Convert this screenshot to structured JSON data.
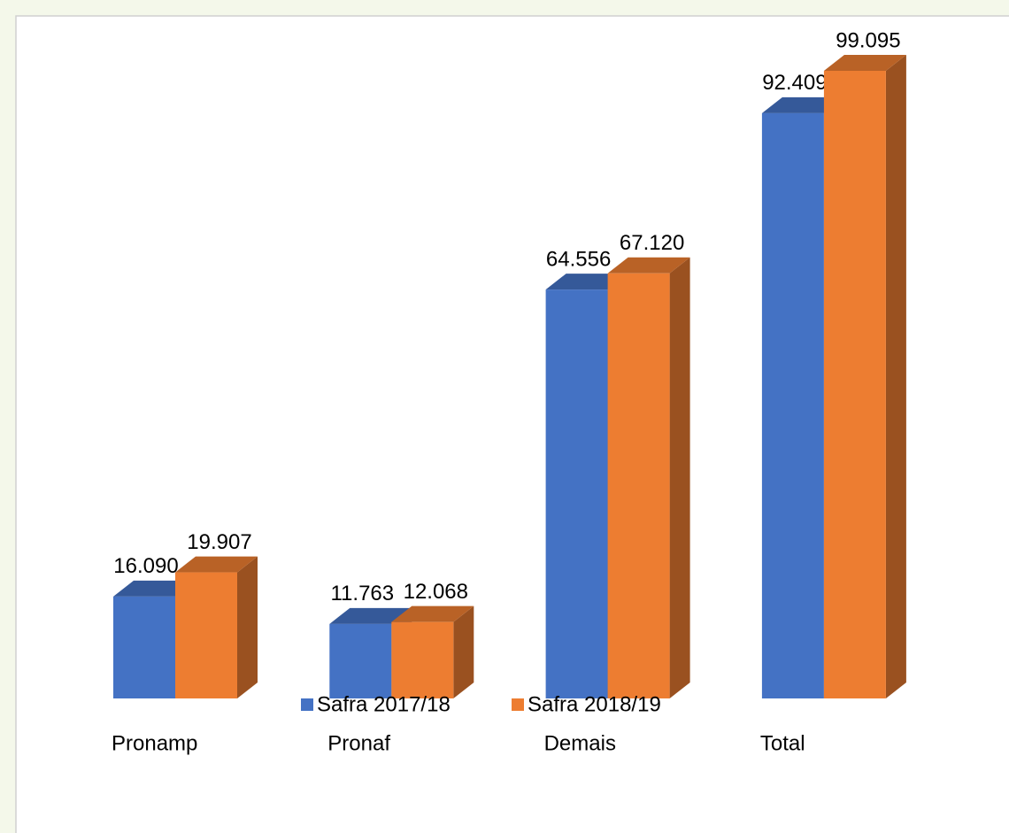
{
  "chart_data": {
    "type": "bar3d",
    "categories": [
      "Pronamp",
      "Pronaf",
      "Demais",
      "Total"
    ],
    "series": [
      {
        "name": "Safra 2017/18",
        "color": "#4472c4",
        "values": [
          16090,
          11763,
          64556,
          92409
        ],
        "value_labels": [
          "16.090",
          "11.763",
          "64.556",
          "92.409"
        ]
      },
      {
        "name": "Safra 2018/19",
        "color": "#ed7d31",
        "values": [
          19907,
          12068,
          67120,
          99095
        ],
        "value_labels": [
          "19.907",
          "12.068",
          "67.120",
          "99.095"
        ]
      }
    ],
    "legend": "bottom"
  }
}
